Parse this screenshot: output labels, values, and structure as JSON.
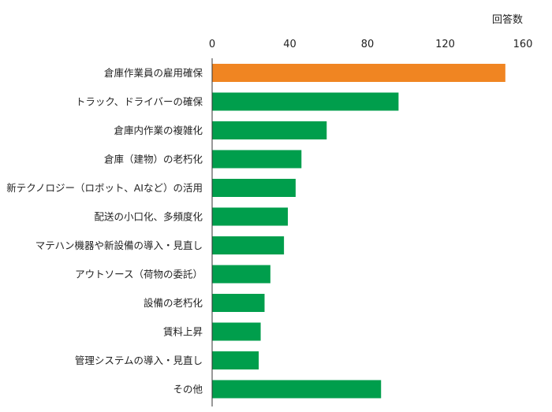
{
  "chart_data": {
    "type": "bar",
    "orientation": "horizontal",
    "unit_label": "回答数",
    "xlim": [
      0,
      160
    ],
    "x_ticks": [
      0,
      40,
      80,
      120,
      160
    ],
    "grid": false,
    "categories": [
      "倉庫作業員の雇用確保",
      "トラック、ドライバーの確保",
      "倉庫内作業の複雑化",
      "倉庫（建物）の老朽化",
      "新テクノロジー（ロボット、AIなど）の活用",
      "配送の小口化、多頻度化",
      "マテハン機器や新設備の導入・見直し",
      "アウトソース（荷物の委託）",
      "設備の老朽化",
      "賃料上昇",
      "管理システムの導入・見直し",
      "その他"
    ],
    "values": [
      151,
      96,
      59,
      46,
      43,
      39,
      37,
      30,
      27,
      25,
      24,
      87
    ],
    "bar_colors": [
      "#F08522",
      "#009E4C",
      "#009E4C",
      "#009E4C",
      "#009E4C",
      "#009E4C",
      "#009E4C",
      "#009E4C",
      "#009E4C",
      "#009E4C",
      "#009E4C",
      "#009E4C"
    ],
    "axis_color": "#333333"
  }
}
